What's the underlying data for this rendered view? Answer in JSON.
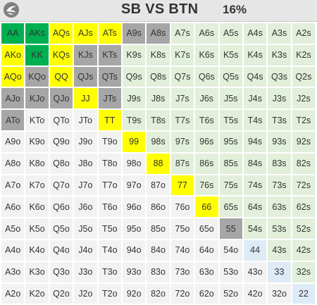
{
  "header": {
    "title": "SB VS BTN",
    "percent": "16%"
  },
  "colors": {
    "raise": "#00b050",
    "call": "#ffff00",
    "fold": "#a6a6a6",
    "suited": "#e2efda",
    "offsuit": "#f2f2f2",
    "pair": "#deebf7"
  },
  "grid": [
    [
      [
        "AA",
        "raise"
      ],
      [
        "AKs",
        "raise"
      ],
      [
        "AQs",
        "call"
      ],
      [
        "AJs",
        "call"
      ],
      [
        "ATs",
        "call"
      ],
      [
        "A9s",
        "fold"
      ],
      [
        "A8s",
        "fold"
      ],
      [
        "A7s",
        "suited"
      ],
      [
        "A6s",
        "suited"
      ],
      [
        "A5s",
        "suited"
      ],
      [
        "A4s",
        "suited"
      ],
      [
        "A3s",
        "suited"
      ],
      [
        "A2s",
        "suited"
      ]
    ],
    [
      [
        "AKo",
        "call"
      ],
      [
        "KK",
        "raise"
      ],
      [
        "KQs",
        "call"
      ],
      [
        "KJs",
        "fold"
      ],
      [
        "KTs",
        "fold"
      ],
      [
        "K9s",
        "suited"
      ],
      [
        "K8s",
        "suited"
      ],
      [
        "K7s",
        "suited"
      ],
      [
        "K6s",
        "suited"
      ],
      [
        "K5s",
        "suited"
      ],
      [
        "K4s",
        "suited"
      ],
      [
        "K3s",
        "suited"
      ],
      [
        "K2s",
        "suited"
      ]
    ],
    [
      [
        "AQo",
        "call"
      ],
      [
        "KQo",
        "fold"
      ],
      [
        "QQ",
        "call"
      ],
      [
        "QJs",
        "fold"
      ],
      [
        "QTs",
        "fold"
      ],
      [
        "Q9s",
        "suited"
      ],
      [
        "Q8s",
        "suited"
      ],
      [
        "Q7s",
        "suited"
      ],
      [
        "Q6s",
        "suited"
      ],
      [
        "Q5s",
        "suited"
      ],
      [
        "Q4s",
        "suited"
      ],
      [
        "Q3s",
        "suited"
      ],
      [
        "Q2s",
        "suited"
      ]
    ],
    [
      [
        "AJo",
        "fold"
      ],
      [
        "KJo",
        "fold"
      ],
      [
        "QJo",
        "fold"
      ],
      [
        "JJ",
        "call"
      ],
      [
        "JTs",
        "fold"
      ],
      [
        "J9s",
        "suited"
      ],
      [
        "J8s",
        "suited"
      ],
      [
        "J7s",
        "suited"
      ],
      [
        "J6s",
        "suited"
      ],
      [
        "J5s",
        "suited"
      ],
      [
        "J4s",
        "suited"
      ],
      [
        "J3s",
        "suited"
      ],
      [
        "J2s",
        "suited"
      ]
    ],
    [
      [
        "ATo",
        "fold"
      ],
      [
        "KTo",
        "offsuit"
      ],
      [
        "QTo",
        "offsuit"
      ],
      [
        "JTo",
        "offsuit"
      ],
      [
        "TT",
        "call"
      ],
      [
        "T9s",
        "suited"
      ],
      [
        "T8s",
        "suited"
      ],
      [
        "T7s",
        "suited"
      ],
      [
        "T6s",
        "suited"
      ],
      [
        "T5s",
        "suited"
      ],
      [
        "T4s",
        "suited"
      ],
      [
        "T3s",
        "suited"
      ],
      [
        "T2s",
        "suited"
      ]
    ],
    [
      [
        "A9o",
        "offsuit"
      ],
      [
        "K9o",
        "offsuit"
      ],
      [
        "Q9o",
        "offsuit"
      ],
      [
        "J9o",
        "offsuit"
      ],
      [
        "T9o",
        "offsuit"
      ],
      [
        "99",
        "call"
      ],
      [
        "98s",
        "suited"
      ],
      [
        "97s",
        "suited"
      ],
      [
        "96s",
        "suited"
      ],
      [
        "95s",
        "suited"
      ],
      [
        "94s",
        "suited"
      ],
      [
        "93s",
        "suited"
      ],
      [
        "92s",
        "suited"
      ]
    ],
    [
      [
        "A8o",
        "offsuit"
      ],
      [
        "K8o",
        "offsuit"
      ],
      [
        "Q8o",
        "offsuit"
      ],
      [
        "J8o",
        "offsuit"
      ],
      [
        "T8o",
        "offsuit"
      ],
      [
        "98o",
        "offsuit"
      ],
      [
        "88",
        "call"
      ],
      [
        "87s",
        "suited"
      ],
      [
        "86s",
        "suited"
      ],
      [
        "85s",
        "suited"
      ],
      [
        "84s",
        "suited"
      ],
      [
        "83s",
        "suited"
      ],
      [
        "82s",
        "suited"
      ]
    ],
    [
      [
        "A7o",
        "offsuit"
      ],
      [
        "K7o",
        "offsuit"
      ],
      [
        "Q7o",
        "offsuit"
      ],
      [
        "J7o",
        "offsuit"
      ],
      [
        "T7o",
        "offsuit"
      ],
      [
        "97o",
        "offsuit"
      ],
      [
        "87o",
        "offsuit"
      ],
      [
        "77",
        "call"
      ],
      [
        "76s",
        "suited"
      ],
      [
        "75s",
        "suited"
      ],
      [
        "74s",
        "suited"
      ],
      [
        "73s",
        "suited"
      ],
      [
        "72s",
        "suited"
      ]
    ],
    [
      [
        "A6o",
        "offsuit"
      ],
      [
        "K6o",
        "offsuit"
      ],
      [
        "Q6o",
        "offsuit"
      ],
      [
        "J6o",
        "offsuit"
      ],
      [
        "T6o",
        "offsuit"
      ],
      [
        "96o",
        "offsuit"
      ],
      [
        "86o",
        "offsuit"
      ],
      [
        "76o",
        "offsuit"
      ],
      [
        "66",
        "call"
      ],
      [
        "65s",
        "suited"
      ],
      [
        "64s",
        "suited"
      ],
      [
        "63s",
        "suited"
      ],
      [
        "62s",
        "suited"
      ]
    ],
    [
      [
        "A5o",
        "offsuit"
      ],
      [
        "K5o",
        "offsuit"
      ],
      [
        "Q5o",
        "offsuit"
      ],
      [
        "J5o",
        "offsuit"
      ],
      [
        "T5o",
        "offsuit"
      ],
      [
        "95o",
        "offsuit"
      ],
      [
        "85o",
        "offsuit"
      ],
      [
        "75o",
        "offsuit"
      ],
      [
        "65o",
        "offsuit"
      ],
      [
        "55",
        "fold"
      ],
      [
        "54s",
        "suited"
      ],
      [
        "53s",
        "suited"
      ],
      [
        "52s",
        "suited"
      ]
    ],
    [
      [
        "A4o",
        "offsuit"
      ],
      [
        "K4o",
        "offsuit"
      ],
      [
        "Q4o",
        "offsuit"
      ],
      [
        "J4o",
        "offsuit"
      ],
      [
        "T4o",
        "offsuit"
      ],
      [
        "94o",
        "offsuit"
      ],
      [
        "84o",
        "offsuit"
      ],
      [
        "74o",
        "offsuit"
      ],
      [
        "64o",
        "offsuit"
      ],
      [
        "54o",
        "offsuit"
      ],
      [
        "44",
        "pair"
      ],
      [
        "43s",
        "suited"
      ],
      [
        "42s",
        "suited"
      ]
    ],
    [
      [
        "A3o",
        "offsuit"
      ],
      [
        "K3o",
        "offsuit"
      ],
      [
        "Q3o",
        "offsuit"
      ],
      [
        "J3o",
        "offsuit"
      ],
      [
        "T3o",
        "offsuit"
      ],
      [
        "93o",
        "offsuit"
      ],
      [
        "83o",
        "offsuit"
      ],
      [
        "73o",
        "offsuit"
      ],
      [
        "63o",
        "offsuit"
      ],
      [
        "53o",
        "offsuit"
      ],
      [
        "43o",
        "offsuit"
      ],
      [
        "33",
        "pair"
      ],
      [
        "32s",
        "suited"
      ]
    ],
    [
      [
        "A2o",
        "offsuit"
      ],
      [
        "K2o",
        "offsuit"
      ],
      [
        "Q2o",
        "offsuit"
      ],
      [
        "J2o",
        "offsuit"
      ],
      [
        "T2o",
        "offsuit"
      ],
      [
        "92o",
        "offsuit"
      ],
      [
        "82o",
        "offsuit"
      ],
      [
        "72o",
        "offsuit"
      ],
      [
        "62o",
        "offsuit"
      ],
      [
        "52o",
        "offsuit"
      ],
      [
        "42o",
        "offsuit"
      ],
      [
        "32o",
        "offsuit"
      ],
      [
        "22",
        "pair"
      ]
    ]
  ]
}
